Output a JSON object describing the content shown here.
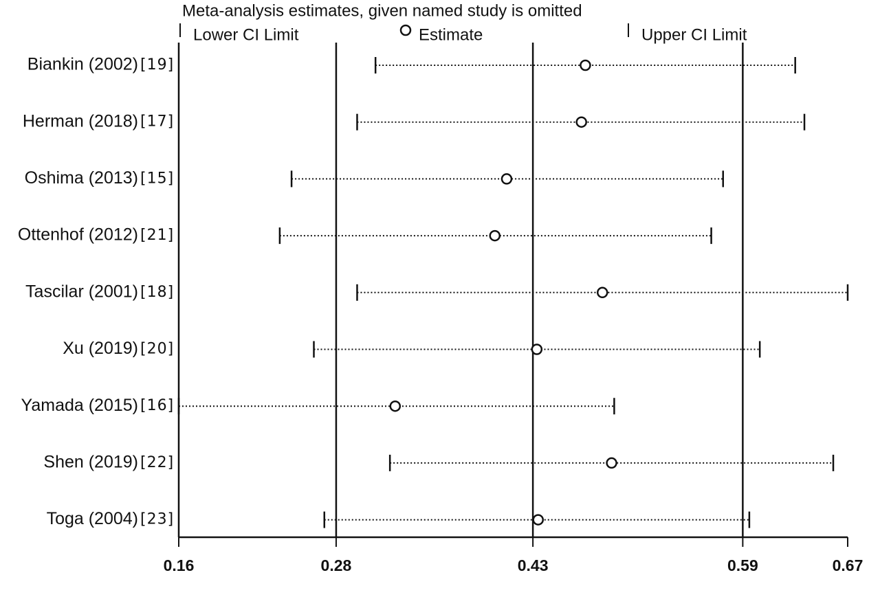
{
  "chart_data": {
    "type": "influence",
    "title": "Meta-analysis estimates, given named study is omitted",
    "categories": [
      "Biankin (2002)",
      "Herman (2018)",
      "Oshima (2013)",
      "Ottenhof (2012)",
      "Tascilar (2001)",
      "Xu (2019)",
      "Yamada (2015)",
      "Shen (2019)",
      "Toga (2004)"
    ],
    "refs": [
      "[19]",
      "[17]",
      "[15]",
      "[21]",
      "[18]",
      "[20]",
      "[16]",
      "[22]",
      "[23]"
    ],
    "series": [
      {
        "name": "Lower CI Limit",
        "color": "#111111",
        "values": [
          0.31,
          0.296,
          0.246,
          0.237,
          0.296,
          0.263,
          0.16,
          0.321,
          0.271
        ]
      },
      {
        "name": "Estimate",
        "color": "#111111",
        "values": [
          0.47,
          0.467,
          0.41,
          0.401,
          0.483,
          0.433,
          0.325,
          0.49,
          0.434
        ]
      },
      {
        "name": "Upper CI Limit",
        "color": "#111111",
        "values": [
          0.63,
          0.637,
          0.575,
          0.566,
          0.67,
          0.603,
          0.492,
          0.659,
          0.595
        ]
      }
    ],
    "reference_lines": [
      0.28,
      0.43,
      0.59
    ],
    "xlim": [
      0.16,
      0.67
    ],
    "xticks": [
      0.16,
      0.28,
      0.43,
      0.59,
      0.67
    ]
  }
}
